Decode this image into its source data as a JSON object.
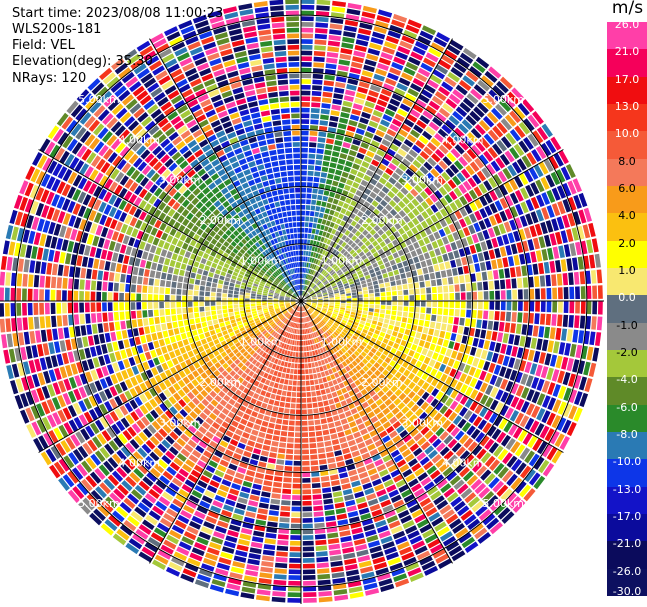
{
  "header": {
    "start_time": "Start time: 2023/08/08 11:00:23",
    "instrument": "WLS200s-181",
    "field": "Field: VEL",
    "elevation": "Elevation(deg): 35.30",
    "nrays": "NRays: 120"
  },
  "chart_data": {
    "type": "heatmap",
    "projection": "polar PPI",
    "field": "VEL",
    "unit": "m/s",
    "n_rays": 120,
    "range_rings_km": [
      1.0,
      2.0,
      3.0,
      4.0,
      5.0
    ],
    "range_ring_labels": [
      "1.00km",
      "2.00km",
      "3.00km",
      "4.00km",
      "5.00km"
    ],
    "spokes_deg": [
      0,
      30,
      60,
      90,
      120,
      150,
      180,
      210,
      240,
      270,
      300,
      330
    ],
    "colorbar": {
      "labels": [
        "26.0",
        "21.0",
        "17.0",
        "13.0",
        "10.0",
        "8.0",
        "6.0",
        "4.0",
        "2.0",
        "1.0",
        "0.0",
        "-1.0",
        "-2.0",
        "-4.0",
        "-6.0",
        "-8.0",
        "-10.0",
        "-13.0",
        "-17.0",
        "-21.0",
        "-26.0",
        "-30.0"
      ],
      "colors": [
        "#ff3fa8",
        "#f5005a",
        "#f00d10",
        "#f5361c",
        "#f55a38",
        "#f4795a",
        "#f89b1a",
        "#fbc010",
        "#ffff00",
        "#f8e870",
        "#5f6f7f",
        "#8a8a8a",
        "#a4c83a",
        "#5f8a28",
        "#2a8a2a",
        "#2a7ab4",
        "#0d36e8",
        "#1313c8",
        "#0b0b9c",
        "#0b0b5c",
        "#0d1060"
      ]
    },
    "near_field_velocity_by_azimuth": [
      {
        "azimuth_deg": 0,
        "vel": -12.0
      },
      {
        "azimuth_deg": 30,
        "vel": -1.5
      },
      {
        "azimuth_deg": 60,
        "vel": -2.5
      },
      {
        "azimuth_deg": 90,
        "vel": 0.5
      },
      {
        "azimuth_deg": 120,
        "vel": 2.5
      },
      {
        "azimuth_deg": 150,
        "vel": 6.0
      },
      {
        "azimuth_deg": 180,
        "vel": 9.0
      },
      {
        "azimuth_deg": 210,
        "vel": 8.0
      },
      {
        "azimuth_deg": 240,
        "vel": 3.5
      },
      {
        "azimuth_deg": 270,
        "vel": 0.5
      },
      {
        "azimuth_deg": 300,
        "vel": -4.0
      },
      {
        "azimuth_deg": 330,
        "vel": -9.0
      }
    ]
  }
}
